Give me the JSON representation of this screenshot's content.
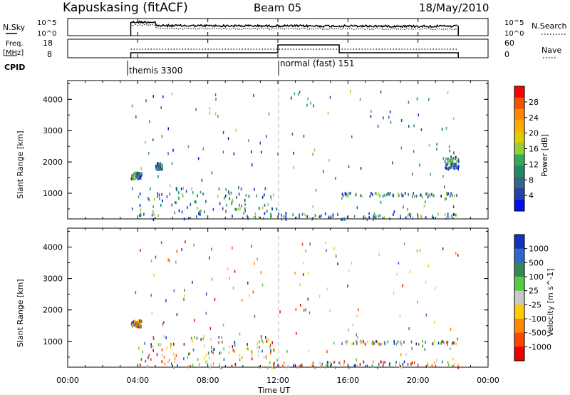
{
  "header": {
    "station": "Kapuskasing (fitACF)",
    "beam": "Beam 05",
    "date": "18/May/2010"
  },
  "noise_panel": {
    "left_label": "N.Sky",
    "right_label": "N.Search",
    "left_ticks": [
      "10^5",
      "10^0"
    ],
    "right_ticks": [
      "10^5",
      "10^0"
    ]
  },
  "freq_panel": {
    "left_label_line1": "Freq.",
    "left_label_line2": "[MHz]",
    "right_label": "Nave",
    "left_ticks": [
      "18",
      "8"
    ],
    "right_ticks": [
      "60",
      "0"
    ]
  },
  "cpid": {
    "label": "CPID",
    "modes": [
      {
        "name": "themis 3300",
        "start_hour": 3.6
      },
      {
        "name": "normal (fast) 151",
        "start_hour": 12.0
      }
    ]
  },
  "power_panel": {
    "ylabel": "Slant Range [km]",
    "colorbar_label": "Power [dB]",
    "colorbar_ticks": [
      "28",
      "24",
      "20",
      "16",
      "12",
      "8",
      "4"
    ],
    "colors": [
      "#ff0000",
      "#ee5500",
      "#ff8800",
      "#ffaa00",
      "#ddcc00",
      "#99cc33",
      "#33aa55",
      "#228866",
      "#336688",
      "#2244aa",
      "#0011ee"
    ]
  },
  "velocity_panel": {
    "ylabel": "Slant Range [km]",
    "colorbar_label": "Velocity [m s^-1]",
    "colorbar_ticks": [
      "1000",
      "500",
      "100",
      "25",
      "-25",
      "-100",
      "-500",
      "-1000"
    ],
    "colors": [
      "#1133bb",
      "#3366cc",
      "#338855",
      "#55cc44",
      "#c8c8c8",
      "#ffcc00",
      "#ff8800",
      "#ff4400",
      "#ee0000"
    ]
  },
  "y_ticks": [
    "4000",
    "3000",
    "2000",
    "1000"
  ],
  "x_ticks": [
    "00:00",
    "04:00",
    "08:00",
    "12:00",
    "16:00",
    "20:00",
    "00:00"
  ],
  "xlabel": "Time UT",
  "chart_data": [
    {
      "type": "heatmap",
      "title": "Power",
      "x_range_hours": [
        0,
        24
      ],
      "ylim": [
        180,
        4600
      ],
      "data_span_hours": [
        3.6,
        22.3
      ],
      "ylabel": "Slant Range [km]",
      "xlabel": "Time UT",
      "colorbar": "Power [dB]",
      "features": [
        {
          "hours": [
            3.6,
            4.2
          ],
          "range_km": [
            1500,
            1700
          ],
          "value": 8
        },
        {
          "hours": [
            5.0,
            5.4
          ],
          "range_km": [
            1800,
            2000
          ],
          "value": 6
        },
        {
          "hours": [
            15.6,
            22.3
          ],
          "range_km": [
            950,
            1050
          ],
          "value": 6
        },
        {
          "hours": [
            4.0,
            12.0
          ],
          "range_km": [
            200,
            1200
          ],
          "value": 14
        },
        {
          "hours": [
            12.0,
            22.3
          ],
          "range_km": [
            200,
            400
          ],
          "value": 10
        },
        {
          "hours": [
            21.5,
            22.3
          ],
          "range_km": [
            1800,
            2200
          ],
          "value": 6
        }
      ]
    },
    {
      "type": "heatmap",
      "title": "Velocity",
      "x_range_hours": [
        0,
        24
      ],
      "ylim": [
        180,
        4600
      ],
      "data_span_hours": [
        3.6,
        22.3
      ],
      "ylabel": "Slant Range [km]",
      "xlabel": "Time UT",
      "colorbar": "Velocity [m s^-1]",
      "features": [
        {
          "hours": [
            3.6,
            4.2
          ],
          "range_km": [
            1500,
            1700
          ],
          "value": 0
        },
        {
          "hours": [
            4.0,
            12.0
          ],
          "range_km": [
            200,
            1200
          ],
          "value": 50
        },
        {
          "hours": [
            15.6,
            22.3
          ],
          "range_km": [
            950,
            1050
          ],
          "value": 0
        },
        {
          "hours": [
            12.0,
            22.3
          ],
          "range_km": [
            200,
            400
          ],
          "value": 25
        }
      ]
    }
  ]
}
